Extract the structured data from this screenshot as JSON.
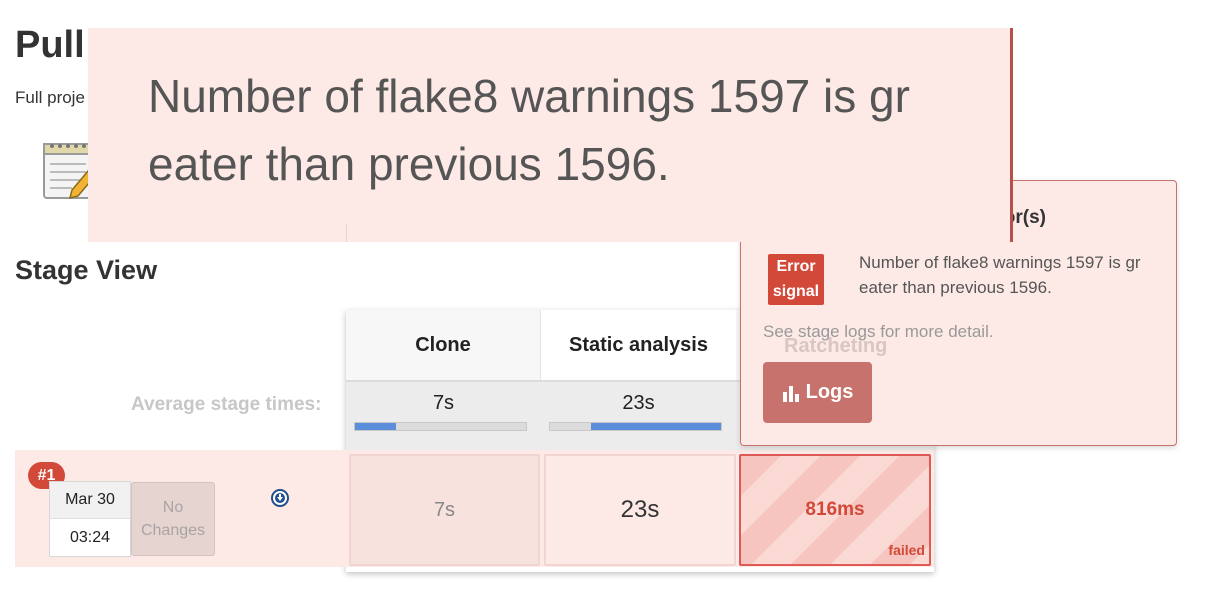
{
  "page": {
    "title": "Pull",
    "description": "Full proje"
  },
  "stage_view": {
    "title": "Stage View",
    "average_label": "Average stage times:",
    "stages": [
      {
        "name": "Clone",
        "avg_time": "7s",
        "bar_start": 0.0,
        "bar_fill": 0.24
      },
      {
        "name": "Static analysis",
        "avg_time": "23s",
        "bar_start": 0.24,
        "bar_fill": 0.76
      },
      {
        "name": "Ratcheting",
        "avg_time": "",
        "bar_start": 0.0,
        "bar_fill": 0.0
      }
    ],
    "build": {
      "number": "#1",
      "date": "Mar 30",
      "time": "03:24",
      "changes": "No Changes",
      "cells": [
        "7s",
        "23s",
        "816ms"
      ],
      "status": "failed"
    }
  },
  "popover": {
    "title": "rror(s)",
    "tag": "Error signal",
    "message": "Number of flake8 warnings 1597 is gr eater than previous 1596.",
    "hint": "See stage logs for more detail.",
    "logs_button": "Logs"
  },
  "zoom": {
    "line1": "Number of flake8 warnings 1597 is gr",
    "line2": "eater than previous 1596."
  },
  "colors": {
    "error": "#d24939",
    "row_bg": "#fdeae6",
    "progress": "#5b8edb",
    "logs_button": "#c7726c"
  },
  "icons": {
    "notepad": "notepad-icon",
    "download": "download-icon",
    "logs": "bar-chart-icon"
  }
}
